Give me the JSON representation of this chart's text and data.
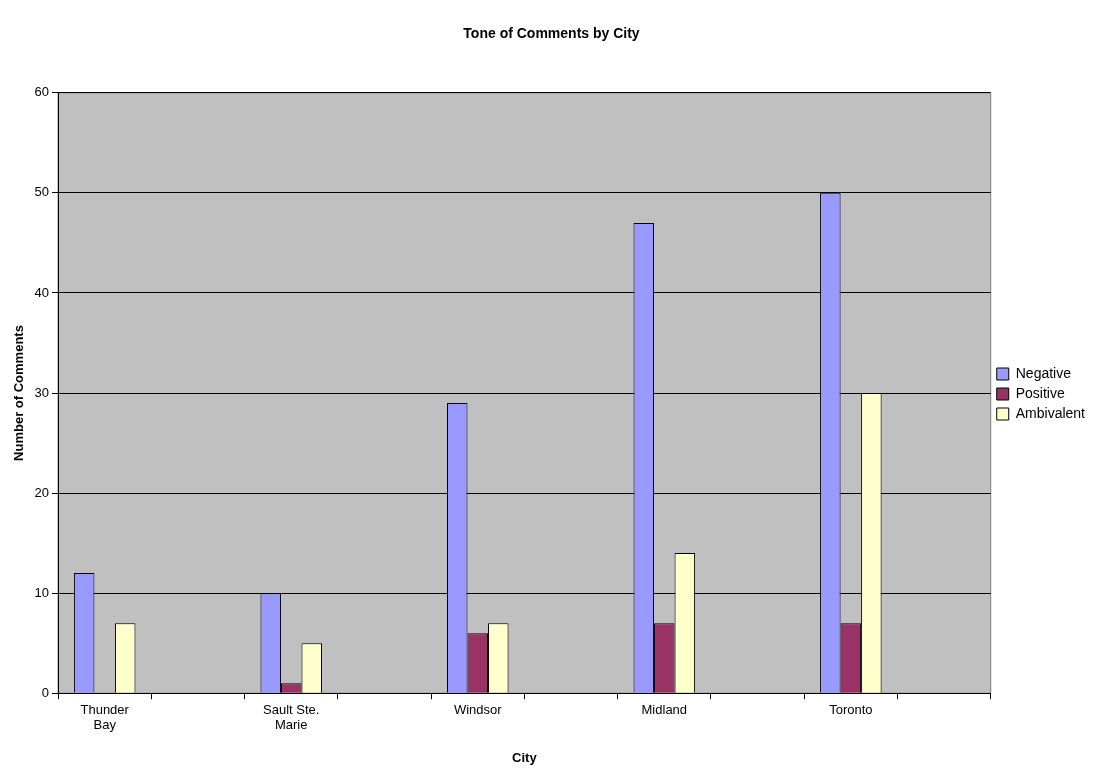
{
  "chart_data": {
    "type": "bar",
    "title": "Tone of Comments by City",
    "xlabel": "City",
    "ylabel": "Number of Comments",
    "categories": [
      "Thunder Bay",
      null,
      "Sault Ste. Marie",
      null,
      "Windsor",
      null,
      "Midland",
      null,
      "Toronto",
      null
    ],
    "series": [
      {
        "name": "Negative",
        "color": "#9999ff",
        "values": [
          12,
          null,
          10,
          null,
          29,
          null,
          47,
          null,
          50,
          null
        ]
      },
      {
        "name": "Positive",
        "color": "#993366",
        "values": [
          0,
          null,
          1,
          null,
          6,
          null,
          7,
          null,
          7,
          null
        ]
      },
      {
        "name": "Ambivalent",
        "color": "#ffffcc",
        "values": [
          7,
          null,
          5,
          null,
          7,
          null,
          14,
          null,
          30,
          null
        ]
      }
    ],
    "ylim": [
      0,
      60
    ],
    "yticks": [
      0,
      10,
      20,
      30,
      40,
      50,
      60
    ],
    "grid": "y",
    "legend": "right"
  }
}
